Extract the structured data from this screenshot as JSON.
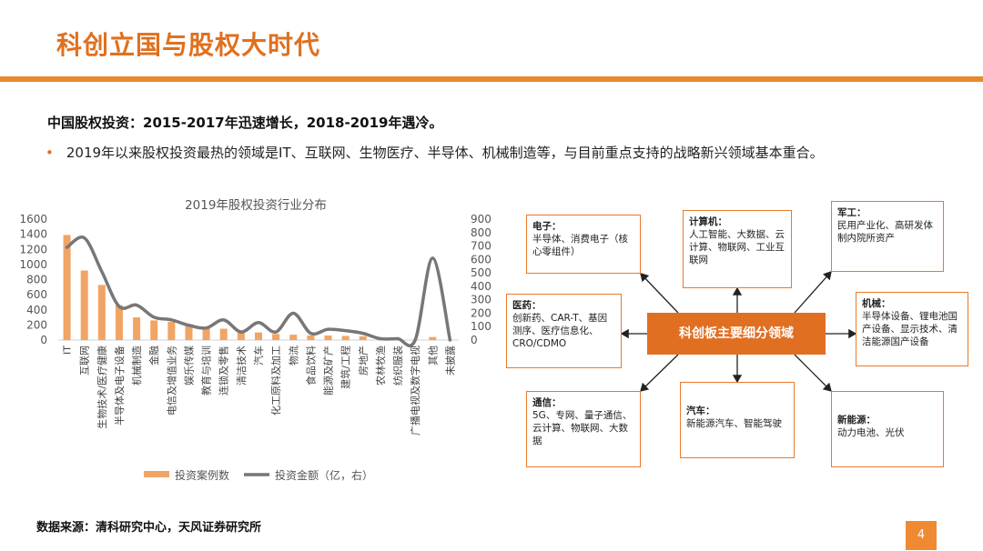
{
  "page": {
    "title": "科创立国与股权大时代",
    "heading": "中国股权投资：2015-2017年迅速增长，2018-2019年遇冷。",
    "bullet_dot": "•",
    "bullet": "2019年以来股权投资最热的领域是IT、互联网、生物医疗、半导体、机械制造等，与目前重点支持的战略新兴领域基本重合。",
    "source": "数据来源：清科研究中心，天风证券研究所",
    "page_number": "4"
  },
  "colors": {
    "accent": "#e0701f",
    "bar": "#f0a565",
    "line": "#777777",
    "box_border": "#e87a2a",
    "center_fill": "#e16f22"
  },
  "chart_data": {
    "type": "bar",
    "title": "2019年股权投资行业分布",
    "categories": [
      "IT",
      "互联网",
      "生物技术/医疗健康",
      "半导体及电子设备",
      "机械制造",
      "金融",
      "电信及增值业务",
      "娱乐传媒",
      "教育与培训",
      "连锁及零售",
      "清洁技术",
      "汽车",
      "化工原料及加工",
      "物流",
      "食品饮料",
      "能源及矿产",
      "建筑/工程",
      "房地产",
      "农林牧渔",
      "纺织服装",
      "广播电视及数字电视",
      "其他",
      "未披露"
    ],
    "series": [
      {
        "name": "投资案例数",
        "axis": "left",
        "type": "bar",
        "values": [
          1390,
          920,
          730,
          460,
          300,
          260,
          240,
          210,
          160,
          150,
          100,
          100,
          80,
          70,
          60,
          60,
          55,
          50,
          15,
          10,
          5,
          40,
          0
        ]
      },
      {
        "name": "投资金额（亿，右）",
        "axis": "right",
        "type": "line",
        "values": [
          690,
          760,
          510,
          250,
          260,
          170,
          150,
          110,
          90,
          150,
          60,
          130,
          60,
          200,
          50,
          80,
          70,
          50,
          10,
          10,
          0,
          610,
          0
        ]
      }
    ],
    "ylim_left": [
      0,
      1600
    ],
    "yticks_left": [
      0,
      200,
      400,
      600,
      800,
      1000,
      1200,
      1400,
      1600
    ],
    "ylim_right": [
      0,
      900
    ],
    "yticks_right": [
      0,
      100,
      200,
      300,
      400,
      500,
      600,
      700,
      800,
      900
    ],
    "legend_position": "bottom"
  },
  "diagram": {
    "center": "科创板主要细分领域",
    "boxes": [
      {
        "id": "electronics",
        "title": "电子：",
        "text": "半导体、消费电子（核心零组件）"
      },
      {
        "id": "computer",
        "title": "计算机：",
        "text": "人工智能、大数据、云计算、物联网、工业互联网"
      },
      {
        "id": "military",
        "title": "军工：",
        "text": "民用产业化、高研发体制内院所资产"
      },
      {
        "id": "medical",
        "title": "医药：",
        "text": "创新药、CAR-T、基因测序、医疗信息化、CRO/CDMO"
      },
      {
        "id": "machinery",
        "title": "机械：",
        "text": "半导体设备、锂电池国产设备、显示技术、清洁能源国产设备"
      },
      {
        "id": "telecom",
        "title": "通信：",
        "text": "5G、专网、量子通信、云计算、物联网、大数据"
      },
      {
        "id": "auto",
        "title": "汽车：",
        "text": "新能源汽车、智能驾驶"
      },
      {
        "id": "newenergy",
        "title": "新能源：",
        "text": "动力电池、光伏"
      }
    ]
  }
}
